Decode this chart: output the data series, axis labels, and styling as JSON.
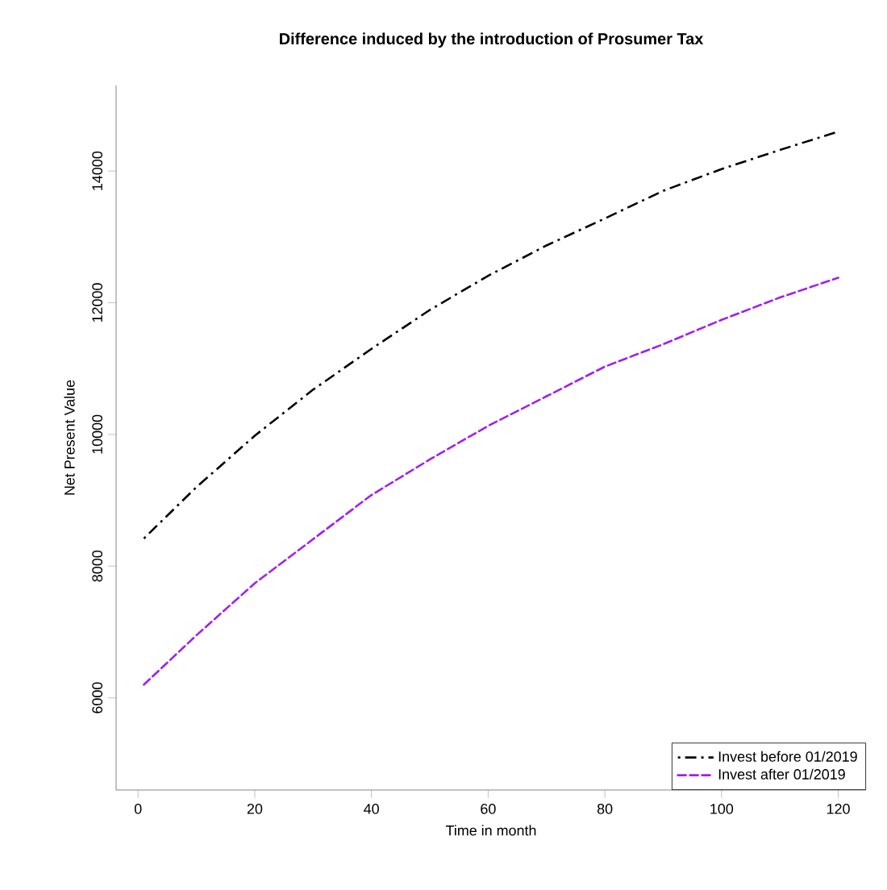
{
  "chart_data": {
    "type": "line",
    "title": "Difference induced by the introduction of Prosumer Tax",
    "xlabel": "Time in month",
    "ylabel": "Net Present Value",
    "xlim": [
      -3.76,
      124.76
    ],
    "ylim": [
      4600,
      15300
    ],
    "xticks": [
      0,
      20,
      40,
      60,
      80,
      100,
      120
    ],
    "yticks": [
      6000,
      8000,
      10000,
      12000,
      14000
    ],
    "grid": false,
    "legend": "bottom right",
    "marker": "none",
    "series": [
      {
        "name": "Invest before 01/2019",
        "color": "#000000",
        "line_style": "dashdot",
        "x": [
          1,
          10,
          20,
          30,
          40,
          50,
          60,
          70,
          80,
          90,
          100,
          110,
          120
        ],
        "values": [
          8420,
          9200,
          9980,
          10680,
          11300,
          11890,
          12410,
          12870,
          13280,
          13700,
          14030,
          14320,
          14600
        ]
      },
      {
        "name": "Invest after    01/2019",
        "color": "#a020f0",
        "line_style": "dashed",
        "x": [
          1,
          10,
          20,
          30,
          40,
          50,
          60,
          70,
          80,
          90,
          100,
          110,
          120
        ],
        "values": [
          6200,
          6950,
          7740,
          8410,
          9080,
          9620,
          10130,
          10580,
          11030,
          11370,
          11740,
          12080,
          12380
        ]
      }
    ]
  }
}
